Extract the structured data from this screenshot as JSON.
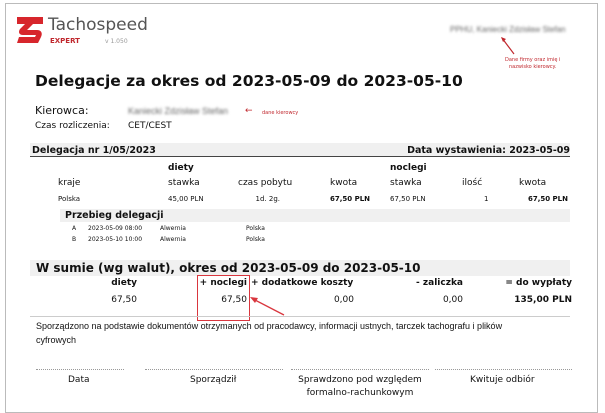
{
  "header": {
    "brand": "Tachospeed",
    "edition": "EXPERT",
    "version": "v 1.050",
    "company_driver": "PPHU, Kaniecki Zdzisław Stefan",
    "annotation_company": [
      "Dane firmy oraz imię i",
      "nazwisko kierowcy."
    ],
    "logo_color": "#d7262c"
  },
  "title": "Delegacje za okres od 2023-05-09 do 2023-05-10",
  "driver": {
    "label": "Kierowca:",
    "value": "Kaniecki Zdzisław Stefan",
    "annotation": "dane kierowcy",
    "time_label": "Czas rozliczenia:",
    "time_value": "CET/CEST"
  },
  "delegation": {
    "number": "Delegacja nr 1/05/2023",
    "issue_date": "Data wystawienia: 2023-05-09",
    "group_diety": "diety",
    "group_noclegi": "noclegi",
    "columns": [
      "kraje",
      "stawka",
      "czas pobytu",
      "kwota",
      "stawka",
      "ilość",
      "kwota"
    ],
    "row": [
      "Polska",
      "45,00 PLN",
      "1d. 2g.",
      "67,50 PLN",
      "67,50 PLN",
      "1",
      "67,50 PLN"
    ],
    "route_title": "Przebieg delegacji",
    "route": [
      [
        "A",
        "2023-05-09 08:00",
        "Alwernia",
        "Polska"
      ],
      [
        "B",
        "2023-05-10 10:00",
        "Alwernia",
        "Polska"
      ]
    ]
  },
  "summary": {
    "title": "W sumie (wg walut), okres od 2023-05-09 do 2023-05-10",
    "columns": [
      "diety",
      "+ noclegi",
      "+ dodatkowe koszty",
      "- zaliczka",
      "= do wypłaty"
    ],
    "values": [
      "67,50",
      "67,50",
      "0,00",
      "0,00",
      "135,00 PLN"
    ],
    "highlight_color": "#d9363e"
  },
  "note": [
    "Sporządzono na podstawie dokumentów otrzymanych od pracodawcy, informacji ustnych, tarczek tachografu i plików",
    "cyfrowych"
  ],
  "signatures": [
    "Data",
    "Sporządził",
    "Sprawdzono pod względem",
    "formalno-rachunkowym",
    "Kwituje odbiór"
  ]
}
